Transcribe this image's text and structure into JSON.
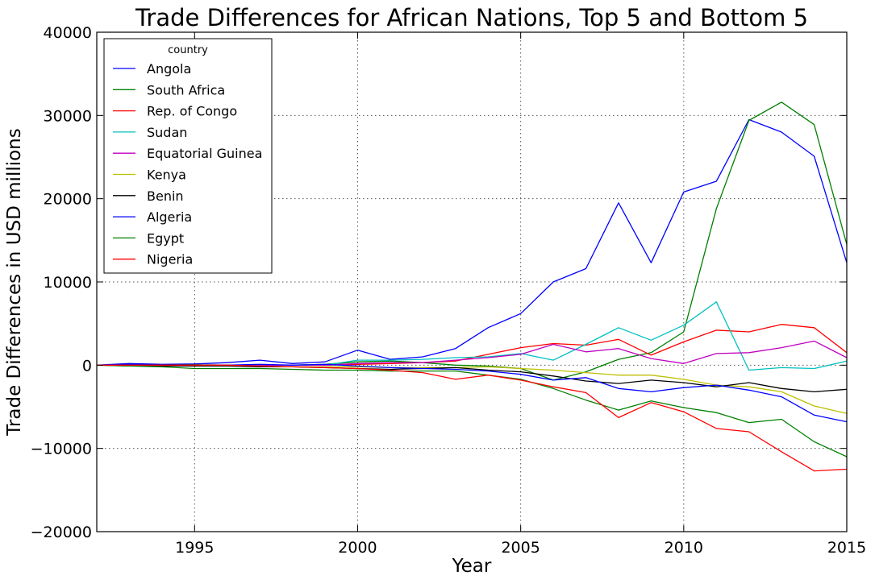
{
  "chart_data": {
    "type": "line",
    "title": "Trade Differences for African Nations, Top 5 and Bottom 5",
    "xlabel": "Year",
    "ylabel": "Trade Differences in USD millions",
    "xlim": [
      1992,
      2015
    ],
    "ylim": [
      -20000,
      40000
    ],
    "xticks": [
      1995,
      2000,
      2005,
      2010,
      2015
    ],
    "yticks": [
      -20000,
      -10000,
      0,
      10000,
      20000,
      30000,
      40000
    ],
    "xtick_labels": [
      "1995",
      "2000",
      "2005",
      "2010",
      "2015"
    ],
    "ytick_labels": [
      "−20000",
      "−10000",
      "0",
      "10000",
      "20000",
      "30000",
      "40000"
    ],
    "grid": true,
    "legend": {
      "title": "country",
      "placement": "top-left"
    },
    "x": [
      1992,
      1993,
      1994,
      1995,
      1996,
      1997,
      1998,
      1999,
      2000,
      2001,
      2002,
      2003,
      2004,
      2005,
      2006,
      2007,
      2008,
      2009,
      2010,
      2011,
      2012,
      2013,
      2014,
      2015
    ],
    "series": [
      {
        "name": "Angola",
        "color": "#0000ff",
        "values": [
          0,
          200,
          100,
          150,
          300,
          600,
          200,
          400,
          1800,
          700,
          1000,
          2000,
          4500,
          6200,
          10000,
          11600,
          19500,
          12300,
          20800,
          22100,
          29500,
          28000,
          25100,
          12300
        ]
      },
      {
        "name": "South Africa",
        "color": "#008000",
        "values": [
          0,
          0,
          0,
          50,
          0,
          0,
          0,
          100,
          400,
          500,
          300,
          0,
          -100,
          -400,
          -1800,
          -800,
          700,
          1500,
          4000,
          18800,
          29400,
          31600,
          28900,
          14500
        ]
      },
      {
        "name": "Rep. of Congo",
        "color": "#ff0000",
        "values": [
          0,
          0,
          0,
          0,
          0,
          0,
          0,
          0,
          100,
          200,
          300,
          500,
          1300,
          2100,
          2600,
          2400,
          3100,
          1200,
          2800,
          4200,
          4000,
          4900,
          4500,
          1500
        ]
      },
      {
        "name": "Sudan",
        "color": "#00bfbf",
        "values": [
          0,
          0,
          0,
          0,
          0,
          0,
          0,
          0,
          600,
          600,
          700,
          900,
          1000,
          1400,
          600,
          2500,
          4500,
          3000,
          4800,
          7600,
          -600,
          -300,
          -400,
          500
        ]
      },
      {
        "name": "Equatorial Guinea",
        "color": "#bf00bf",
        "values": [
          0,
          0,
          0,
          0,
          0,
          0,
          0,
          0,
          200,
          300,
          300,
          600,
          900,
          1300,
          2500,
          1600,
          2000,
          800,
          200,
          1400,
          1500,
          2100,
          2900,
          900
        ]
      },
      {
        "name": "Kenya",
        "color": "#bfbf00",
        "values": [
          0,
          0,
          0,
          -100,
          -100,
          -100,
          -200,
          -200,
          -200,
          -300,
          -300,
          -300,
          -200,
          -400,
          -600,
          -900,
          -1200,
          -1200,
          -1700,
          -2400,
          -2600,
          -3200,
          -4900,
          -5800
        ]
      },
      {
        "name": "Benin",
        "color": "#000000",
        "values": [
          0,
          -100,
          -100,
          -100,
          -100,
          -200,
          -200,
          -300,
          -400,
          -500,
          -400,
          -300,
          -600,
          -800,
          -1300,
          -1900,
          -2200,
          -1800,
          -2100,
          -2600,
          -2100,
          -2800,
          -3200,
          -2900
        ]
      },
      {
        "name": "Algeria",
        "color": "#0000ff",
        "values": [
          0,
          100,
          0,
          0,
          0,
          100,
          0,
          100,
          -100,
          -300,
          -400,
          -500,
          -700,
          -1100,
          -1800,
          -1500,
          -2800,
          -3200,
          -2700,
          -2400,
          -3000,
          -3800,
          -6000,
          -6800
        ]
      },
      {
        "name": "Egypt",
        "color": "#008000",
        "values": [
          0,
          -100,
          -200,
          -400,
          -400,
          -400,
          -500,
          -600,
          -600,
          -700,
          -700,
          -700,
          -1200,
          -1700,
          -2800,
          -4200,
          -5400,
          -4300,
          -5100,
          -5700,
          -6900,
          -6500,
          -9200,
          -11000
        ]
      },
      {
        "name": "Nigeria",
        "color": "#ff0000",
        "values": [
          0,
          0,
          0,
          0,
          0,
          -100,
          -200,
          -300,
          -400,
          -600,
          -900,
          -1700,
          -1200,
          -1800,
          -2600,
          -3300,
          -6300,
          -4500,
          -5600,
          -7600,
          -8000,
          -10400,
          -12700,
          -12500
        ]
      }
    ]
  }
}
